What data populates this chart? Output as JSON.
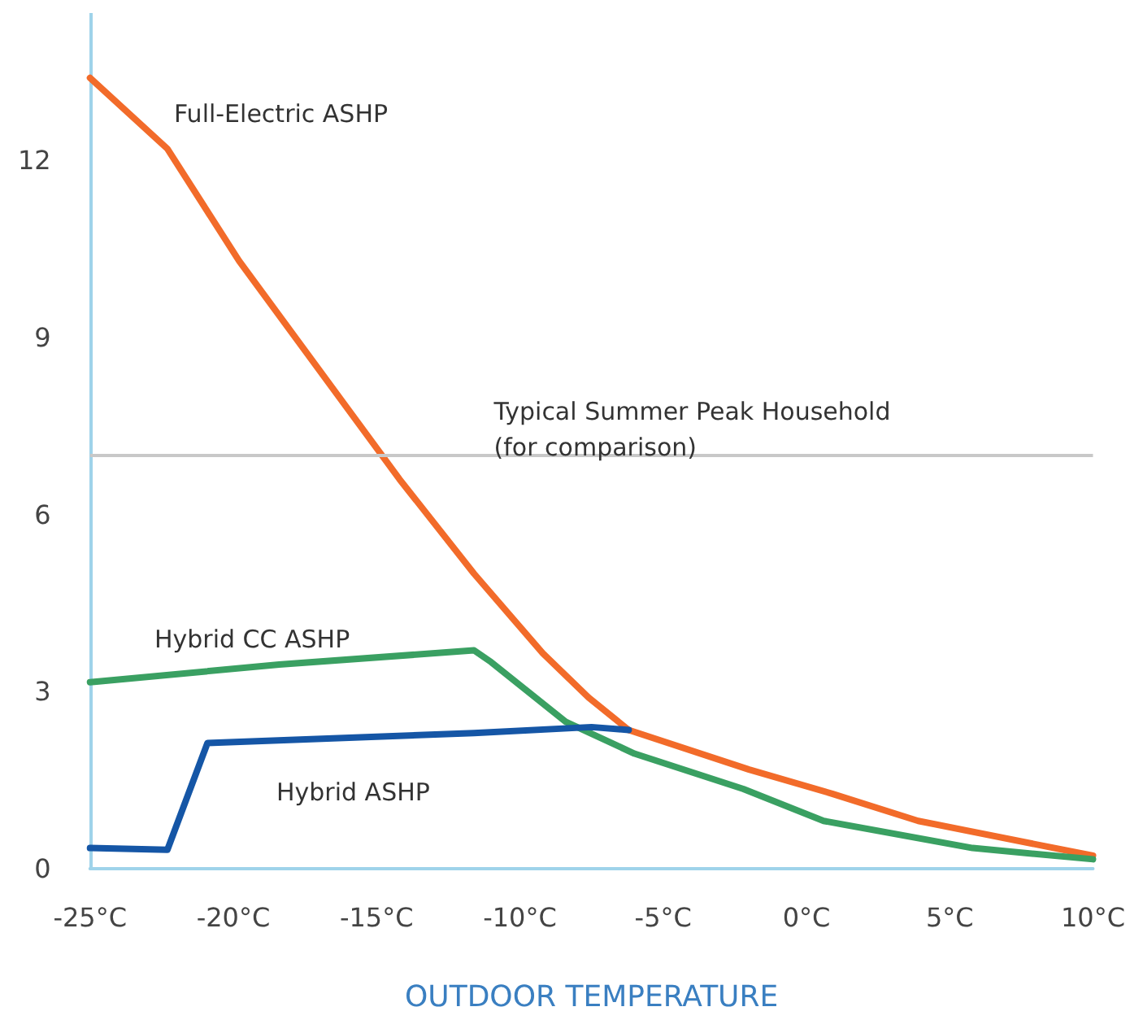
{
  "chart_data": {
    "type": "line",
    "xlabel": "OUTDOOR TEMPERATURE",
    "xlim": [
      -25,
      10
    ],
    "xticks": [
      {
        "value": -25,
        "label": "-25°C"
      },
      {
        "value": -20,
        "label": "-20°C"
      },
      {
        "value": -15,
        "label": "-15°C"
      },
      {
        "value": -10,
        "label": "-10°C"
      },
      {
        "value": -5,
        "label": "-5°C"
      },
      {
        "value": 0,
        "label": "0°C"
      },
      {
        "value": 5,
        "label": "5°C"
      },
      {
        "value": 10,
        "label": "10°C"
      }
    ],
    "ylim": [
      0,
      14.5
    ],
    "yticks": [
      0,
      3,
      6,
      9,
      12
    ],
    "grid": false,
    "marker": "none",
    "line_style": "solid",
    "series": [
      {
        "color": "#f26b2a",
        "x": [
          -25,
          -22.3,
          -19.8,
          -14.2,
          -11.6,
          -9.2,
          -7.6,
          -6.2,
          -2,
          0.9,
          3.9,
          10
        ],
        "values": [
          13.4,
          12.2,
          10.3,
          6.6,
          5,
          3.65,
          2.9,
          2.35,
          1.68,
          1.27,
          0.81,
          0.22
        ]
      },
      {
        "color": "#3aa062",
        "x": [
          -25,
          -18.4,
          -11.6,
          -11,
          -8.4,
          -6,
          -2.2,
          0.6,
          5.8,
          10
        ],
        "values": [
          3.16,
          3.46,
          3.7,
          3.5,
          2.49,
          1.95,
          1.35,
          0.81,
          0.35,
          0.16
        ]
      },
      {
        "color": "#1556a6",
        "x": [
          -25,
          -22.3,
          -20.9,
          -11.6,
          -7.5,
          -6.2
        ],
        "values": [
          0.35,
          0.32,
          2.13,
          2.3,
          2.4,
          2.35
        ]
      }
    ],
    "ref_lines": [
      {
        "axis": "y",
        "value": 7,
        "label": "Typical Summer Peak Household\n(for comparison)",
        "color": "#c8c8c8"
      }
    ],
    "annotations": [
      "Full-Electric ASHP",
      "Hybrid CC ASHP",
      "Hybrid ASHP"
    ]
  }
}
